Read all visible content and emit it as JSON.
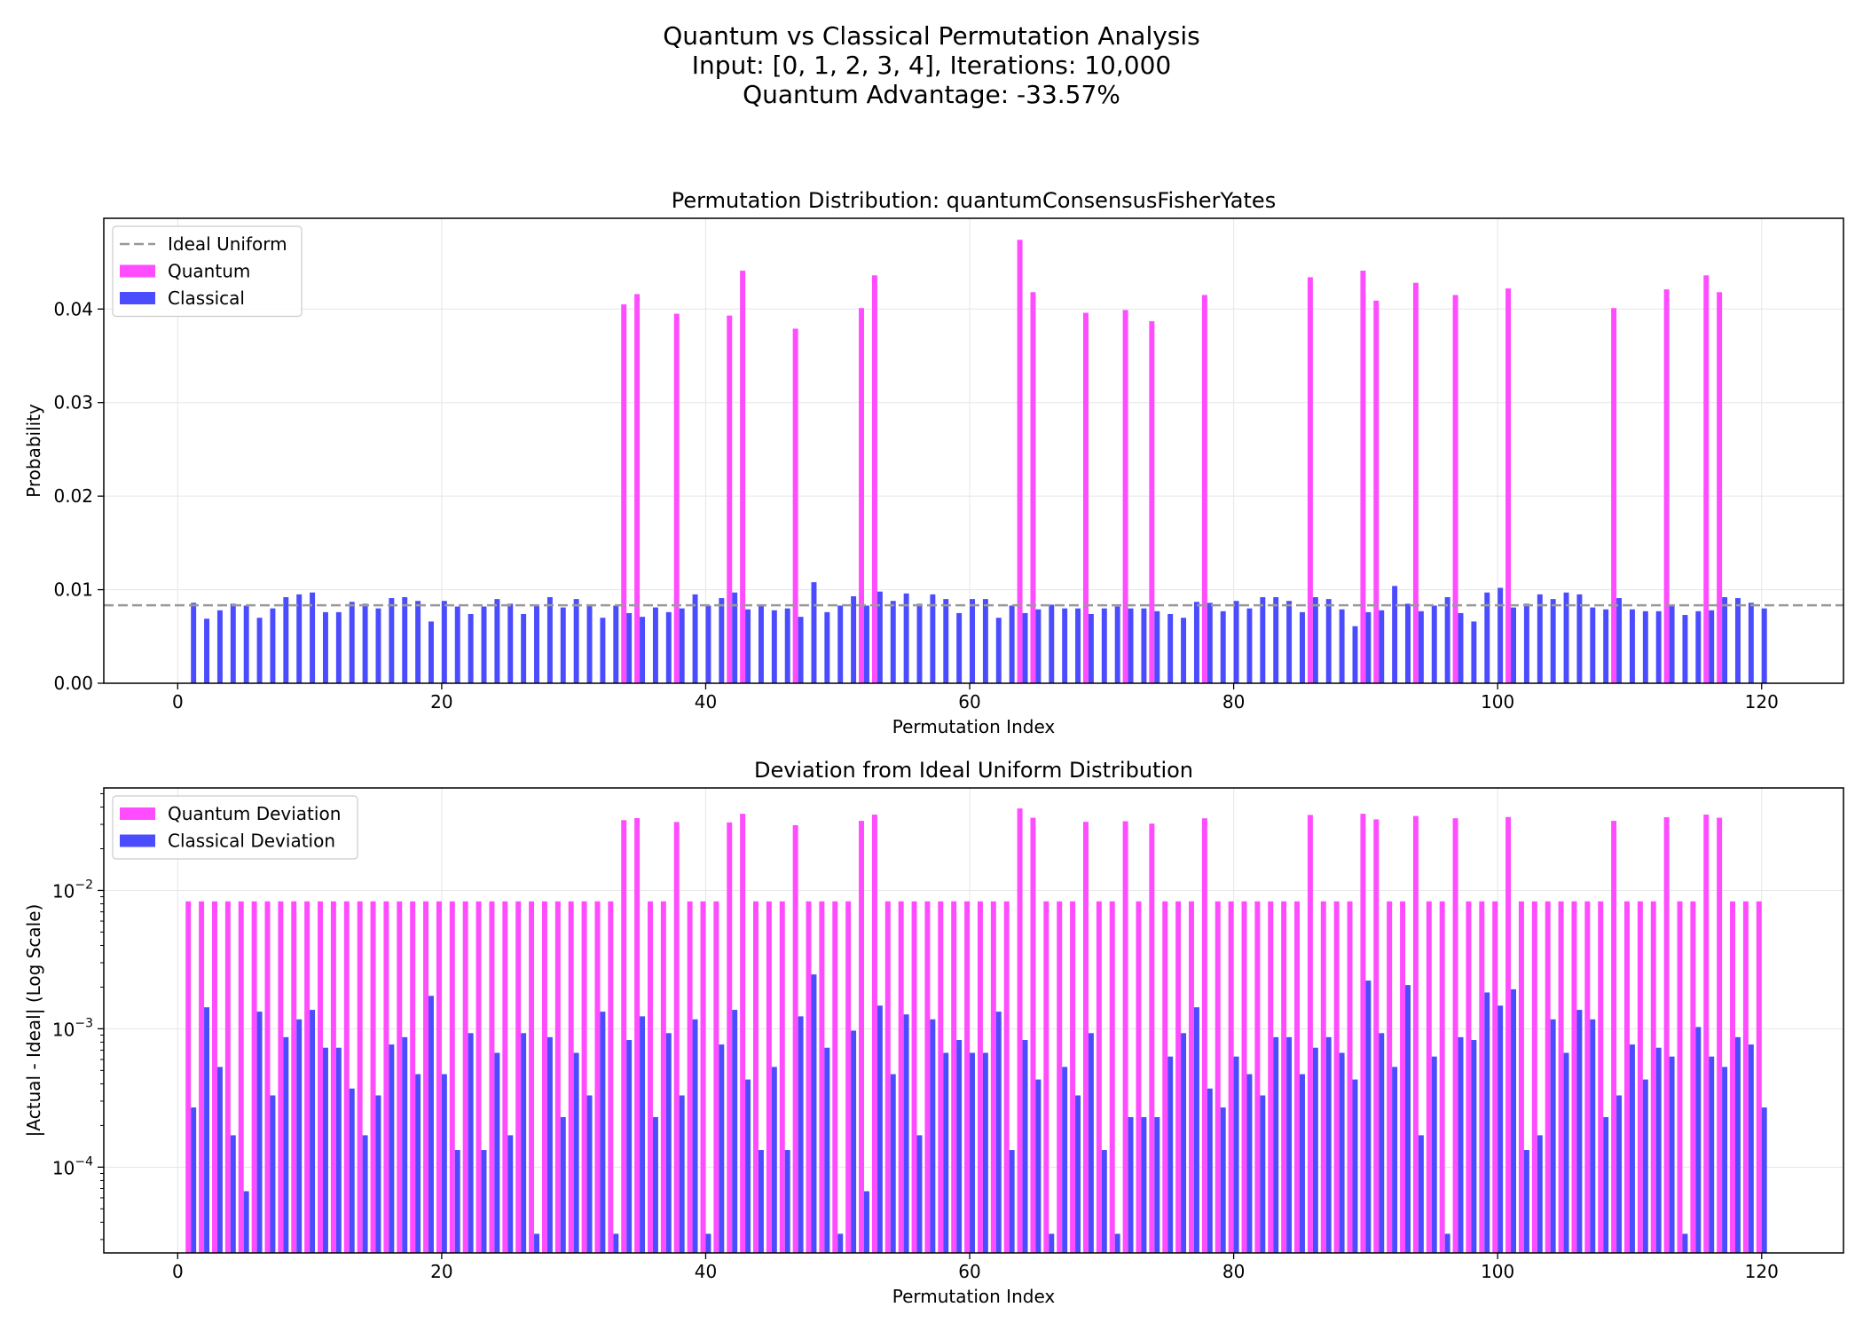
{
  "figure": {
    "suptitle_lines": [
      "Quantum vs Classical Permutation Analysis",
      "Input: [0, 1, 2, 3, 4], Iterations: 10,000",
      "Quantum Advantage: -33.57%"
    ]
  },
  "colors": {
    "quantum": "#ff4cff",
    "classical": "#4c4cff",
    "ideal": "#999999",
    "grid": "#e6e6e6"
  },
  "chart_data": [
    {
      "type": "bar",
      "title": "Permutation Distribution: quantumConsensusFisherYates",
      "xlabel": "Permutation Index",
      "ylabel": "Probability",
      "xlim": [
        -5.6,
        126.2
      ],
      "ylim": [
        0,
        0.0497
      ],
      "xticks": [
        0,
        20,
        40,
        60,
        80,
        100,
        120
      ],
      "yticks": [
        0.0,
        0.01,
        0.02,
        0.03,
        0.04
      ],
      "ytick_labels": [
        "0.00",
        "0.01",
        "0.02",
        "0.03",
        "0.04"
      ],
      "grid": true,
      "legend_position": "upper left",
      "ideal_line": {
        "name": "Ideal Uniform",
        "value": 0.00833
      },
      "x_start": 1,
      "series": [
        {
          "name": "Quantum",
          "role": "quantum",
          "values": [
            0,
            0,
            0,
            0,
            0,
            0,
            0,
            0,
            0,
            0,
            0,
            0,
            0,
            0,
            0,
            0,
            0,
            0,
            0,
            0,
            0,
            0,
            0,
            0,
            0,
            0,
            0,
            0,
            0,
            0,
            0,
            0,
            0,
            0.0405,
            0.0416,
            0,
            0,
            0.0395,
            0,
            0,
            0,
            0.0393,
            0.0441,
            0,
            0,
            0,
            0.0379,
            0,
            0,
            0,
            0,
            0.0401,
            0.0436,
            0,
            0,
            0,
            0,
            0,
            0,
            0,
            0,
            0,
            0,
            0.0474,
            0.0418,
            0,
            0,
            0,
            0.0396,
            0,
            0,
            0.0399,
            0,
            0.0387,
            0,
            0,
            0,
            0.0415,
            0,
            0,
            0,
            0,
            0,
            0,
            0,
            0.0434,
            0,
            0,
            0,
            0.0441,
            0.0409,
            0,
            0,
            0.0428,
            0,
            0,
            0.0415,
            0,
            0,
            0,
            0.0422,
            0,
            0,
            0,
            0,
            0,
            0,
            0,
            0.0401,
            0,
            0,
            0,
            0.0421,
            0,
            0,
            0.0436,
            0.0418,
            0,
            0,
            0
          ]
        },
        {
          "name": "Classical",
          "role": "classical",
          "values": [
            0.0086,
            0.0069,
            0.0078,
            0.0085,
            0.0083,
            0.007,
            0.008,
            0.0092,
            0.0095,
            0.0097,
            0.0076,
            0.0076,
            0.0087,
            0.0085,
            0.008,
            0.0091,
            0.0092,
            0.0088,
            0.0066,
            0.0088,
            0.0082,
            0.0074,
            0.0082,
            0.009,
            0.0085,
            0.0074,
            0.0083,
            0.0092,
            0.0081,
            0.009,
            0.0083,
            0.007,
            0.0083,
            0.0075,
            0.0071,
            0.0081,
            0.0076,
            0.008,
            0.0095,
            0.0083,
            0.0091,
            0.0097,
            0.0079,
            0.0083,
            0.0078,
            0.008,
            0.0071,
            0.0108,
            0.0076,
            0.0083,
            0.0093,
            0.0083,
            0.0098,
            0.0088,
            0.0096,
            0.0085,
            0.0095,
            0.009,
            0.0075,
            0.009,
            0.009,
            0.007,
            0.0083,
            0.0075,
            0.0079,
            0.0084,
            0.008,
            0.008,
            0.0074,
            0.008,
            0.0082,
            0.008,
            0.008,
            0.0077,
            0.0074,
            0.007,
            0.0087,
            0.0086,
            0.0077,
            0.0088,
            0.008,
            0.0092,
            0.0092,
            0.0088,
            0.0076,
            0.0092,
            0.009,
            0.0079,
            0.0061,
            0.0076,
            0.0078,
            0.0104,
            0.0085,
            0.0077,
            0.0083,
            0.0092,
            0.0075,
            0.0066,
            0.0097,
            0.0102,
            0.0081,
            0.0085,
            0.0095,
            0.009,
            0.0097,
            0.0095,
            0.0081,
            0.0079,
            0.0091,
            0.0079,
            0.0077,
            0.0077,
            0.0083,
            0.0073,
            0.0077,
            0.0078,
            0.0092,
            0.0091,
            0.0086,
            0.008
          ]
        }
      ]
    },
    {
      "type": "bar",
      "title": "Deviation from Ideal Uniform Distribution",
      "xlabel": "Permutation Index",
      "ylabel": "|Actual - Ideal| (Log Scale)",
      "yscale": "log",
      "xlim": [
        -5.6,
        126.2
      ],
      "ylim": [
        2.4e-05,
        0.055
      ],
      "xticks": [
        0,
        20,
        40,
        60,
        80,
        100,
        120
      ],
      "yticks": [
        0.0001,
        0.001,
        0.01
      ],
      "ytick_labels": [
        [
          "10",
          "−4"
        ],
        [
          "10",
          "−3"
        ],
        [
          "10",
          "−2"
        ]
      ],
      "grid": true,
      "legend_position": "upper left",
      "x_start": 1,
      "series": [
        {
          "name": "Quantum Deviation",
          "role": "quantum",
          "values": [
            0.00833,
            0.00833,
            0.00833,
            0.00833,
            0.00833,
            0.00833,
            0.00833,
            0.00833,
            0.00833,
            0.00833,
            0.00833,
            0.00833,
            0.00833,
            0.00833,
            0.00833,
            0.00833,
            0.00833,
            0.00833,
            0.00833,
            0.00833,
            0.00833,
            0.00833,
            0.00833,
            0.00833,
            0.00833,
            0.00833,
            0.00833,
            0.00833,
            0.00833,
            0.00833,
            0.00833,
            0.00833,
            0.00833,
            0.0322,
            0.0333,
            0.00833,
            0.00833,
            0.0312,
            0.00833,
            0.00833,
            0.00833,
            0.031,
            0.0358,
            0.00833,
            0.00833,
            0.00833,
            0.0296,
            0.00833,
            0.00833,
            0.00833,
            0.00833,
            0.0318,
            0.0353,
            0.00833,
            0.00833,
            0.00833,
            0.00833,
            0.00833,
            0.00833,
            0.00833,
            0.00833,
            0.00833,
            0.00833,
            0.0391,
            0.0335,
            0.00833,
            0.00833,
            0.00833,
            0.0313,
            0.00833,
            0.00833,
            0.0316,
            0.00833,
            0.0304,
            0.00833,
            0.00833,
            0.00833,
            0.0332,
            0.00833,
            0.00833,
            0.00833,
            0.00833,
            0.00833,
            0.00833,
            0.00833,
            0.0351,
            0.00833,
            0.00833,
            0.00833,
            0.0358,
            0.0326,
            0.00833,
            0.00833,
            0.0345,
            0.00833,
            0.00833,
            0.0332,
            0.00833,
            0.00833,
            0.00833,
            0.0339,
            0.00833,
            0.00833,
            0.00833,
            0.00833,
            0.00833,
            0.00833,
            0.00833,
            0.0318,
            0.00833,
            0.00833,
            0.00833,
            0.0338,
            0.00833,
            0.00833,
            0.0353,
            0.0335,
            0.00833,
            0.00833,
            0.00833
          ]
        },
        {
          "name": "Classical Deviation",
          "role": "classical",
          "values": [
            0.00027,
            0.00143,
            0.00053,
            0.00017,
            6.7e-05,
            0.00133,
            0.00033,
            0.00087,
            0.00117,
            0.00137,
            0.00073,
            0.00073,
            0.00037,
            0.00017,
            0.00033,
            0.00077,
            0.00087,
            0.00047,
            0.00173,
            0.00047,
            0.000133,
            0.00093,
            0.000133,
            0.00067,
            0.00017,
            0.00093,
            3.3e-05,
            0.00087,
            0.00023,
            0.00067,
            0.00033,
            0.00133,
            3.3e-05,
            0.00083,
            0.00123,
            0.00023,
            0.00093,
            0.00033,
            0.00117,
            3.3e-05,
            0.00077,
            0.00137,
            0.00043,
            0.000133,
            0.00053,
            0.000133,
            0.00123,
            0.00247,
            0.00073,
            3.3e-05,
            0.00097,
            6.7e-05,
            0.00147,
            0.00047,
            0.00127,
            0.00017,
            0.00117,
            0.00067,
            0.00083,
            0.00067,
            0.00067,
            0.00133,
            0.000133,
            0.00083,
            0.00043,
            3.3e-05,
            0.00053,
            0.00033,
            0.00093,
            0.000133,
            3.3e-05,
            0.00023,
            0.00023,
            0.00023,
            0.00063,
            0.00093,
            0.00143,
            0.00037,
            0.00027,
            0.00063,
            0.00047,
            0.00033,
            0.00087,
            0.00087,
            0.00047,
            0.00073,
            0.00087,
            0.00067,
            0.00043,
            0.00223,
            0.00093,
            0.00053,
            0.00207,
            0.00017,
            0.00063,
            3.3e-05,
            0.00087,
            0.00083,
            0.00183,
            0.00147,
            0.00193,
            0.000133,
            0.00017,
            0.00117,
            0.00067,
            0.00137,
            0.00117,
            0.00023,
            0.00033,
            0.00077,
            0.00043,
            0.00073,
            0.00063,
            3.3e-05,
            0.00103,
            0.00063,
            0.00053,
            0.00087,
            0.00077,
            0.00027
          ]
        }
      ]
    }
  ]
}
